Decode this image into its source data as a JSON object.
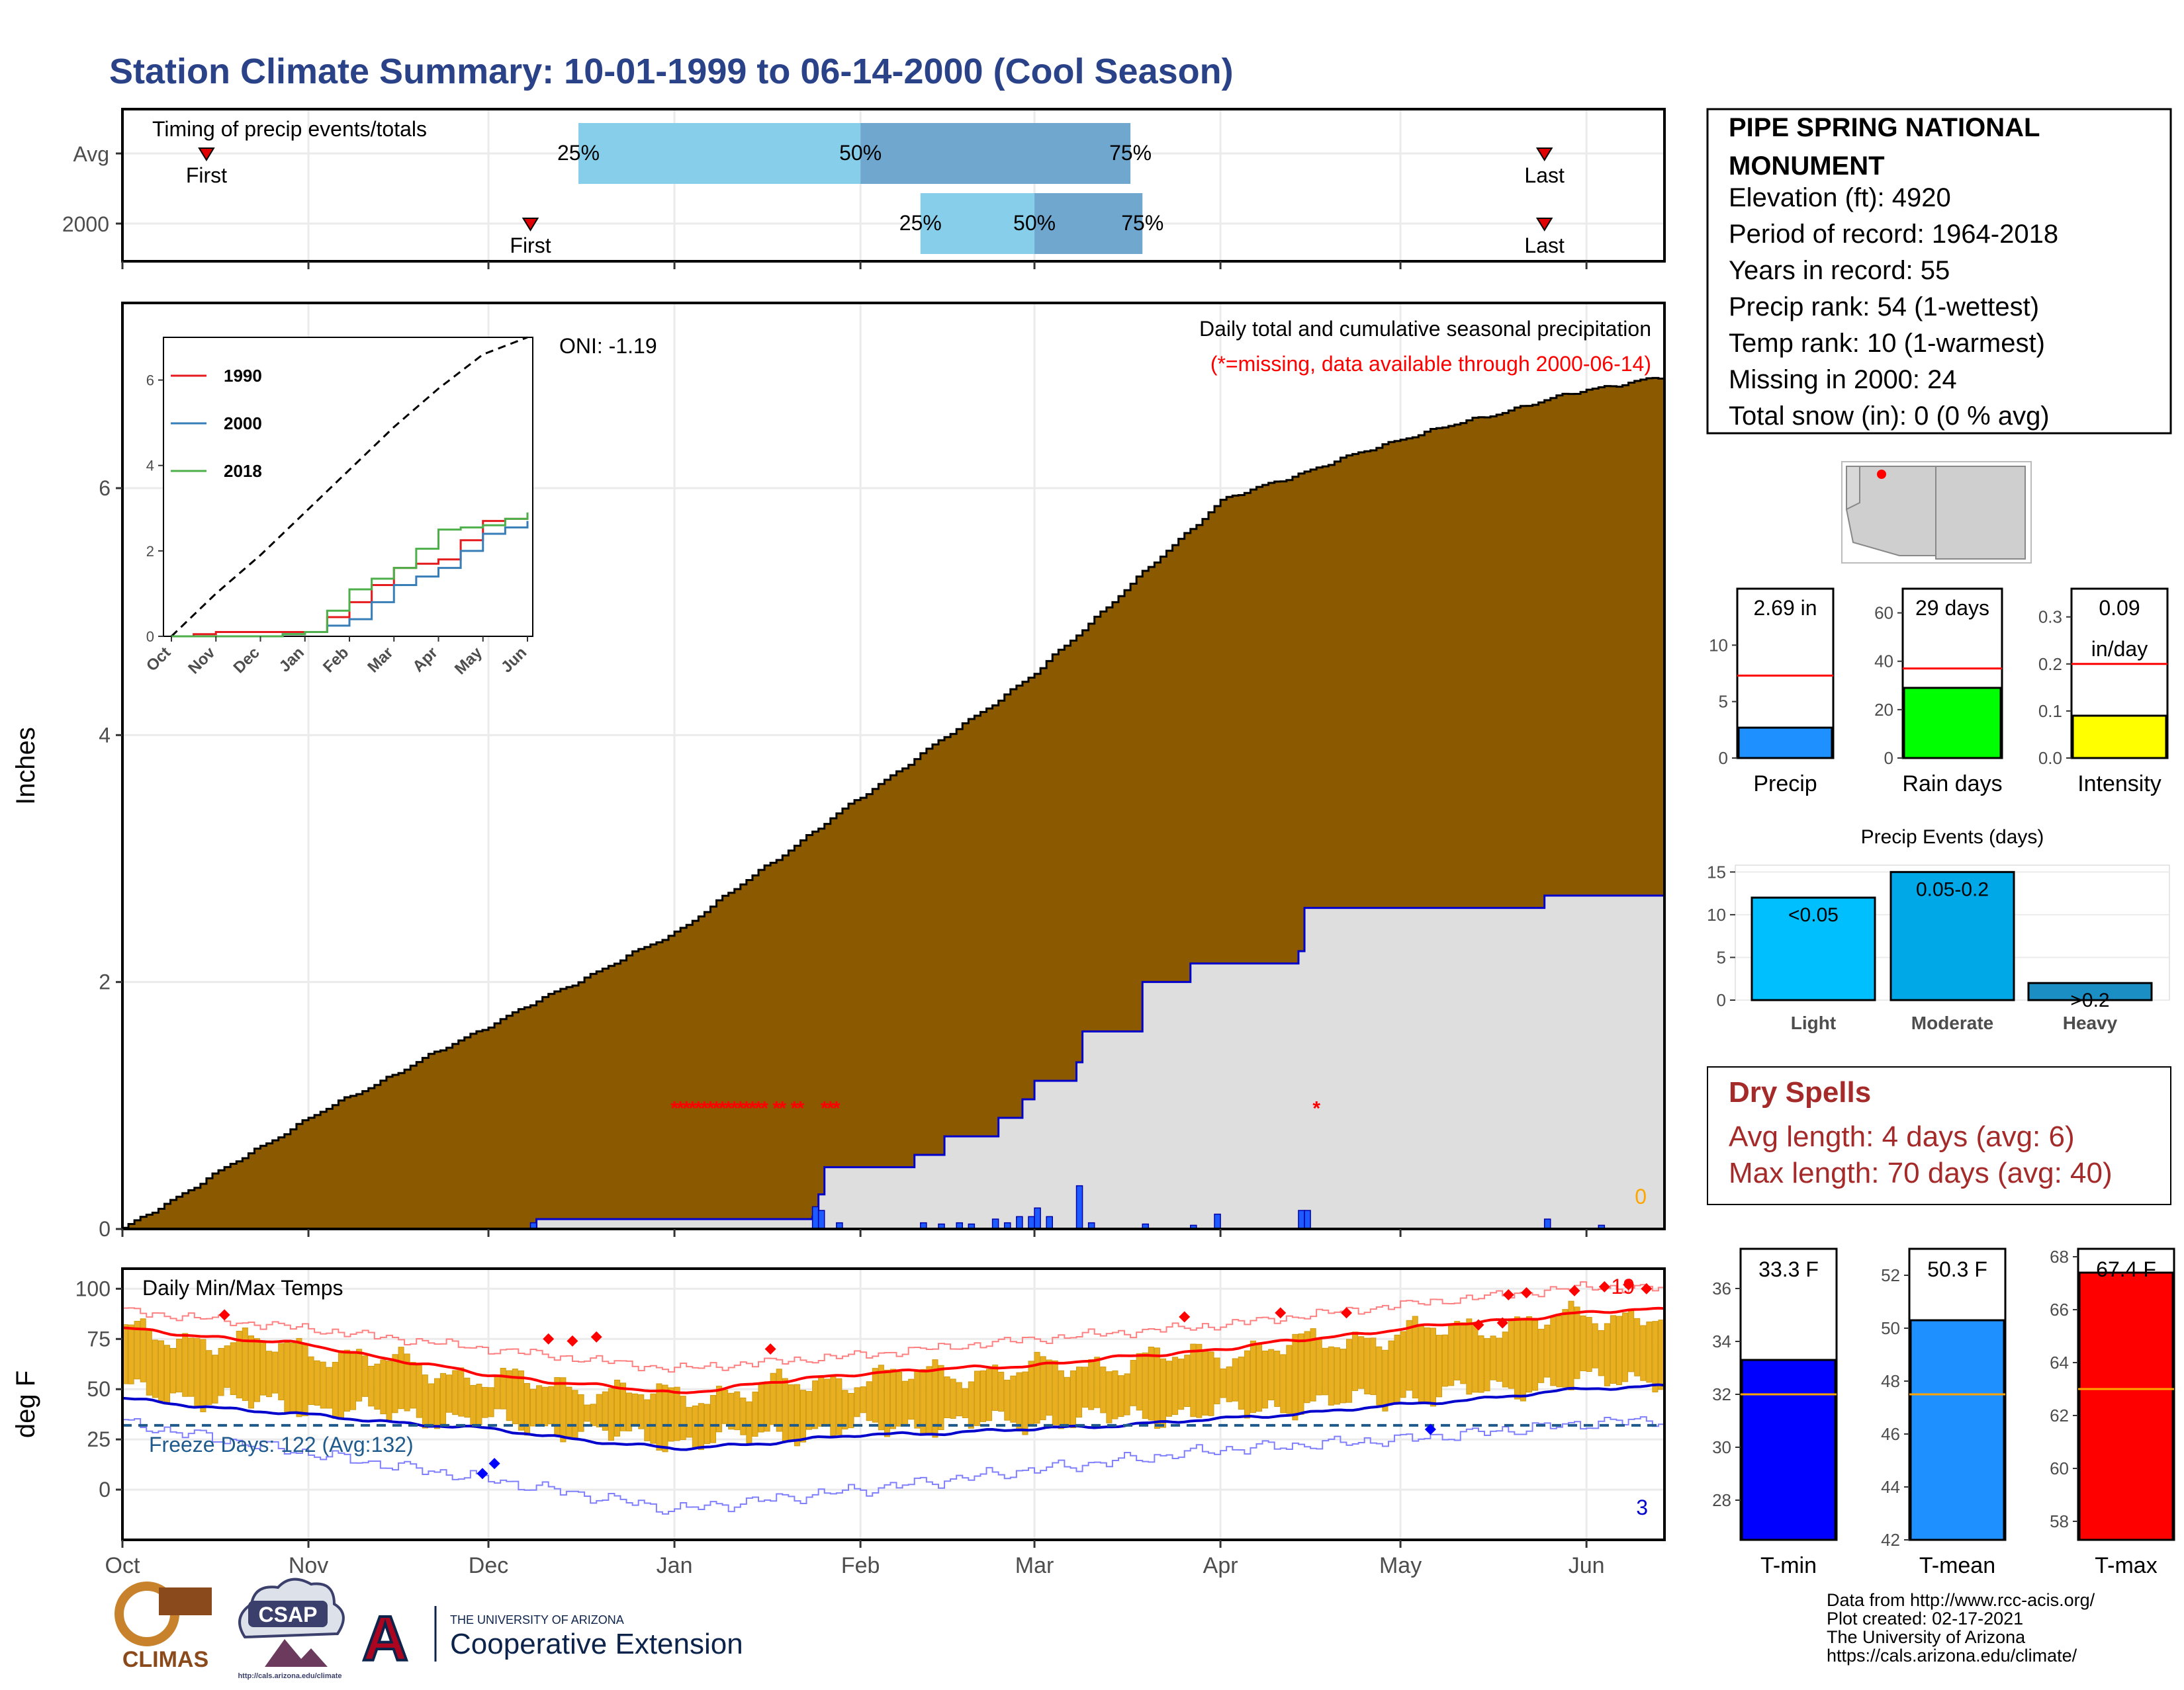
{
  "title": "Station Climate Summary: 10-01-1999 to 06-14-2000 (Cool Season)",
  "timing": {
    "title": "Timing of precip events/totals",
    "rows": [
      {
        "label": "Avg",
        "first": "Oct 15",
        "p25": "Dec 16",
        "p50": "Feb 1",
        "p75": "Mar 17",
        "last": "May 25"
      },
      {
        "label": "2000",
        "first": "Dec 8",
        "p25": "Feb 11",
        "p50": "Mar 1",
        "p75": "Mar 19",
        "last": "May 25"
      }
    ],
    "labels": {
      "first": "First",
      "last": "Last",
      "p25": "25%",
      "p50": "50%",
      "p75": "75%"
    }
  },
  "precip": {
    "title": "Daily total and cumulative seasonal precipitation",
    "subtitle": "(*=missing, data available through 2000-06-14)",
    "oni": "ONI: -1.19",
    "ylabel": "Inches",
    "corner_value": "0",
    "yticks": [
      "0",
      "2",
      "4",
      "6"
    ]
  },
  "inset": {
    "months": [
      "Oct",
      "Nov",
      "Dec",
      "Jan",
      "Feb",
      "Mar",
      "Apr",
      "May",
      "Jun"
    ],
    "yticks": [
      "0",
      "2",
      "4",
      "6"
    ],
    "legend": [
      {
        "name": "1990",
        "color": "#e41a1c"
      },
      {
        "name": "2000",
        "color": "#377eb8"
      },
      {
        "name": "2018",
        "color": "#4daf4a"
      }
    ]
  },
  "temps": {
    "title": "Daily Min/Max Temps",
    "ylabel": "deg F",
    "freeze": "Freeze Days: 122 (Avg:132)",
    "corner_max": "19",
    "corner_min": "3",
    "yticks": [
      "0",
      "25",
      "50",
      "75",
      "100"
    ]
  },
  "months": [
    "Oct",
    "Nov",
    "Dec",
    "Jan",
    "Feb",
    "Mar",
    "Apr",
    "May",
    "Jun"
  ],
  "station": {
    "name_line1": "PIPE SPRING NATIONAL",
    "name_line2": "MONUMENT",
    "lines": [
      "Elevation (ft): 4920",
      "Period of record: 1964-2018",
      "Years in record: 55",
      "Precip rank: 54 (1-wettest)",
      "Temp rank: 10 (1-warmest)",
      "Missing in 2000: 24",
      "Total snow (in): 0 (0 % avg)"
    ]
  },
  "mini_bars": [
    {
      "label": "Precip",
      "value_text": "2.69 in",
      "value": 2.69,
      "avg": 7.3,
      "max": 15,
      "ticks": [
        "0",
        "5",
        "10"
      ],
      "tickvals": [
        0,
        5,
        10
      ],
      "color": "#1E90FF"
    },
    {
      "label": "Rain days",
      "value_text": "29 days",
      "value": 29,
      "avg": 37,
      "max": 70,
      "ticks": [
        "0",
        "20",
        "40",
        "60"
      ],
      "tickvals": [
        0,
        20,
        40,
        60
      ],
      "color": "#00FF00"
    },
    {
      "label": "Intensity",
      "value_text": "0.09",
      "value_text2": "in/day",
      "value": 0.09,
      "avg": 0.2,
      "max": 0.36,
      "ticks": [
        "0.0",
        "0.1",
        "0.2",
        "0.3"
      ],
      "tickvals": [
        0,
        0.1,
        0.2,
        0.3
      ],
      "color": "#FFFF00"
    }
  ],
  "precip_events": {
    "title": "Precip Events (days)",
    "ticks": [
      "0",
      "5",
      "10",
      "15"
    ],
    "bars": [
      {
        "label": "Light",
        "range": "<0.05",
        "value": 12,
        "color": "#00BFFF"
      },
      {
        "label": "Moderate",
        "range": "0.05-0.2",
        "value": 15,
        "color": "#00A8E8"
      },
      {
        "label": "Heavy",
        "range": ">0.2",
        "value": 2,
        "color": "#1B8FC4"
      }
    ]
  },
  "dry_spells": {
    "title": "Dry Spells",
    "avg": "Avg length: 4 days (avg: 6)",
    "max": "Max length: 70 days (avg: 40)"
  },
  "temp_bars": [
    {
      "label": "T-min",
      "value_text": "33.3 F",
      "value": 33.3,
      "avg": 32.0,
      "min": 26.5,
      "max": 37.5,
      "ticks": [
        "28",
        "30",
        "32",
        "34",
        "36"
      ],
      "tickvals": [
        28,
        30,
        32,
        34,
        36
      ],
      "color": "#0000FF"
    },
    {
      "label": "T-mean",
      "value_text": "50.3 F",
      "value": 50.3,
      "avg": 47.5,
      "min": 42,
      "max": 53,
      "ticks": [
        "42",
        "44",
        "46",
        "48",
        "50",
        "52"
      ],
      "tickvals": [
        42,
        44,
        46,
        48,
        50,
        52
      ],
      "color": "#1E90FF"
    },
    {
      "label": "T-max",
      "value_text": "67.4 F",
      "value": 67.4,
      "avg": 63.0,
      "min": 57.3,
      "max": 68.3,
      "ticks": [
        "58",
        "60",
        "62",
        "64",
        "66",
        "68"
      ],
      "tickvals": [
        58,
        60,
        62,
        64,
        66,
        68
      ],
      "color": "#FF0000"
    }
  ],
  "footer": {
    "lines": [
      "Data from http://www.rcc-acis.org/",
      "Plot created: 02-17-2021",
      "The University of Arizona",
      "https://cals.arizona.edu/climate/"
    ],
    "logo_climas": "CLIMAS",
    "logo_csap": "CSAP",
    "logo_csap_url": "http://cals.arizona.edu/climate",
    "ua_small": "THE UNIVERSITY OF ARIZONA",
    "ua_big": "Cooperative Extension",
    "ua_letter": "A"
  },
  "chart_data": [
    {
      "type": "area",
      "title": "Daily total and cumulative seasonal precipitation",
      "ylabel": "Inches",
      "ylim": [
        0,
        7.5
      ],
      "x_range": [
        "1999-10-01",
        "2000-06-14"
      ],
      "series": [
        {
          "name": "",
          "x": [
            "1999-10-01",
            "1999-11-01",
            "1999-12-01",
            "2000-01-01",
            "2000-02-01",
            "2000-03-01",
            "2000-04-01",
            "2000-05-01",
            "2000-06-01",
            "2000-06-14"
          ],
          "values": [
            0.0,
            0.9,
            1.65,
            2.4,
            3.5,
            4.5,
            5.9,
            6.4,
            6.8,
            6.9
          ]
        },
        {
          "name": "",
          "x": [
            "1999-10-01",
            "1999-12-08",
            "1999-12-09",
            "2000-01-24",
            "2000-01-25",
            "2000-01-26",
            "2000-02-10",
            "2000-02-15",
            "2000-02-24",
            "2000-02-28",
            "2000-03-01",
            "2000-03-08",
            "2000-03-09",
            "2000-03-19",
            "2000-03-27",
            "2000-04-14",
            "2000-04-15",
            "2000-05-25",
            "2000-06-14"
          ],
          "values": [
            0.0,
            0.0,
            0.08,
            0.1,
            0.28,
            0.5,
            0.6,
            0.75,
            0.9,
            1.05,
            1.2,
            1.35,
            1.6,
            2.0,
            2.15,
            2.25,
            2.6,
            2.7,
            2.69
          ]
        }
      ],
      "daily_bars": {
        "x": [
          "1999-12-08",
          "2000-01-24",
          "2000-01-25",
          "2000-01-28",
          "2000-02-11",
          "2000-02-14",
          "2000-02-17",
          "2000-02-19",
          "2000-02-23",
          "2000-02-25",
          "2000-02-27",
          "2000-02-29",
          "2000-03-01",
          "2000-03-03",
          "2000-03-08",
          "2000-03-10",
          "2000-03-19",
          "2000-03-27",
          "2000-03-31",
          "2000-04-14",
          "2000-04-15",
          "2000-05-25",
          "2000-06-03"
        ],
        "values": [
          0.05,
          0.18,
          0.15,
          0.05,
          0.05,
          0.04,
          0.05,
          0.04,
          0.08,
          0.05,
          0.1,
          0.1,
          0.17,
          0.1,
          0.35,
          0.05,
          0.04,
          0.03,
          0.12,
          0.15,
          0.15,
          0.08,
          0.03
        ]
      },
      "missing_marker_dates": [
        "2000-01-01",
        "2000-01-02",
        "2000-01-03",
        "2000-01-04",
        "2000-01-05",
        "2000-01-06",
        "2000-01-07",
        "2000-01-08",
        "2000-01-09",
        "2000-01-10",
        "2000-01-11",
        "2000-01-12",
        "2000-01-13",
        "2000-01-14",
        "2000-01-15",
        "2000-01-16",
        "2000-01-18",
        "2000-01-19",
        "2000-01-21",
        "2000-01-22",
        "2000-01-26",
        "2000-01-27",
        "2000-01-28",
        "2000-04-17"
      ]
    },
    {
      "type": "line",
      "title": "",
      "xlabel": "",
      "ylabel": "",
      "ylim": [
        0,
        7
      ],
      "categories": [
        "Oct",
        "Nov",
        "Dec",
        "Jan",
        "Feb",
        "Mar",
        "Apr",
        "May",
        "Jun"
      ],
      "series": [
        {
          "name": "",
          "values": [
            0.0,
            1.0,
            1.9,
            2.9,
            3.9,
            4.9,
            5.8,
            6.6,
            7.0
          ]
        },
        {
          "name": "1990",
          "values": [
            0.0,
            0.1,
            0.1,
            0.1,
            0.8,
            1.6,
            1.8,
            2.7,
            2.8
          ]
        },
        {
          "name": "2000",
          "values": [
            0.0,
            0.0,
            0.0,
            0.1,
            0.4,
            1.2,
            1.6,
            2.4,
            2.7
          ]
        },
        {
          "name": "2018",
          "values": [
            0.0,
            0.0,
            0.0,
            0.1,
            1.1,
            1.6,
            2.5,
            2.6,
            2.9
          ]
        }
      ]
    },
    {
      "type": "bar",
      "title": "Daily Min/Max Temps",
      "ylabel": "deg F",
      "ylim": [
        -25,
        110
      ],
      "x": [
        "1999-10-01",
        "1999-11-01",
        "1999-12-01",
        "2000-01-01",
        "2000-02-01",
        "2000-03-01",
        "2000-04-01",
        "2000-05-01",
        "2000-06-01",
        "2000-06-14"
      ],
      "series": [
        {
          "name": "",
          "values": [
            80,
            72,
            57,
            48,
            58,
            62,
            70,
            80,
            88,
            90
          ]
        },
        {
          "name": "",
          "values": [
            45,
            37,
            30,
            20,
            27,
            30,
            35,
            42,
            50,
            52
          ]
        },
        {
          "name": "",
          "values": [
            89,
            80,
            70,
            60,
            67,
            75,
            82,
            92,
            101,
            100
          ]
        },
        {
          "name": "",
          "values": [
            33,
            18,
            5,
            -10,
            0,
            10,
            20,
            25,
            33,
            35
          ]
        }
      ],
      "freeze_line": 32
    },
    {
      "type": "bar",
      "categories": [
        "Precip",
        "Rain days",
        "Intensity"
      ],
      "values": [
        2.69,
        29,
        0.09
      ]
    },
    {
      "type": "bar",
      "title": "Precip Events (days)",
      "categories": [
        "Light",
        "Moderate",
        "Heavy"
      ],
      "values": [
        12,
        15,
        2
      ]
    },
    {
      "type": "bar",
      "categories": [
        "T-min",
        "T-mean",
        "T-max"
      ],
      "values": [
        33.3,
        50.3,
        67.4
      ]
    }
  ]
}
